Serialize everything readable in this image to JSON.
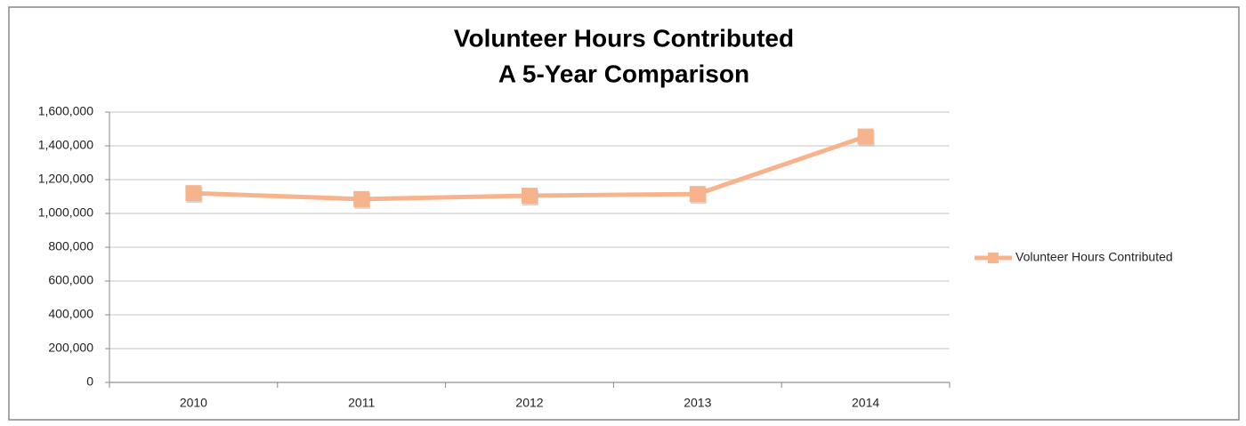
{
  "chart_data": {
    "type": "line",
    "title": [
      "Volunteer Hours Contributed",
      "A 5-Year Comparison"
    ],
    "categories": [
      "2010",
      "2011",
      "2012",
      "2013",
      "2014"
    ],
    "series": [
      {
        "name": "Volunteer Hours Contributed",
        "color": "#f7b48c",
        "values": [
          1120000,
          1085000,
          1105000,
          1115000,
          1455000
        ]
      }
    ],
    "ylim": [
      0,
      1600000
    ],
    "yticks": [
      0,
      {
        "value": 200000,
        "label": "200,000"
      },
      {
        "value": 400000,
        "label": "400,000"
      },
      {
        "value": 600000,
        "label": "600,000"
      },
      {
        "value": 800000,
        "label": "800,000"
      },
      {
        "value": 1000000,
        "label": "1,000,000"
      },
      {
        "value": 1200000,
        "label": "1,200,000"
      },
      {
        "value": 1400000,
        "label": "1,400,000"
      },
      {
        "value": 1600000,
        "label": "1,600,000"
      }
    ],
    "grid": true,
    "legend": "right"
  }
}
